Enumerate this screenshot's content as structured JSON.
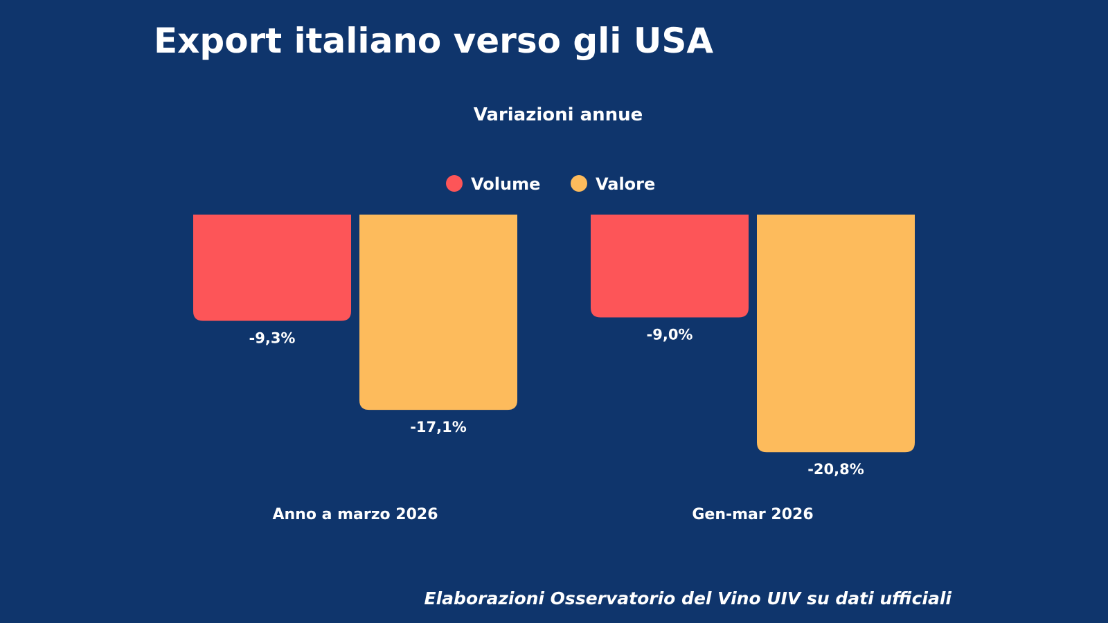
{
  "chart_data": {
    "type": "bar",
    "title": "Export italiano verso gli USA",
    "subtitle": "Variazioni annue",
    "categories": [
      "Anno a marzo 2026",
      "Gen-mar 2026"
    ],
    "series": [
      {
        "name": "Volume",
        "color": "#fd5558",
        "values": [
          -9.3,
          -9.0
        ],
        "labels": [
          "-9,3%",
          "-9,0%"
        ]
      },
      {
        "name": "Valore",
        "color": "#fdbb5c",
        "values": [
          -17.1,
          -20.8
        ],
        "labels": [
          "-17,1%",
          "-20,8%"
        ]
      }
    ],
    "legend_position": "top-center",
    "grid": false,
    "ylim": [
      -22,
      0
    ],
    "source": "Elaborazioni Osservatorio del Vino UIV su dati ufficiali"
  }
}
